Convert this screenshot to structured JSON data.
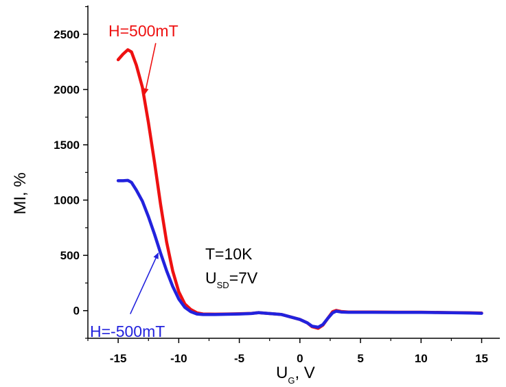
{
  "chart_data": {
    "type": "line",
    "xlabel": {
      "main": "U",
      "sub": "G",
      "rest": ", V"
    },
    "ylabel": "MI, %",
    "xlim": [
      -17.5,
      16.5
    ],
    "ylim": [
      -250,
      2760
    ],
    "x_ticks": [
      -15,
      -10,
      -5,
      0,
      5,
      10,
      15
    ],
    "y_ticks": [
      0,
      500,
      1000,
      1500,
      2000,
      2500
    ],
    "x_tick_labels": [
      "-15",
      "-10",
      "-5",
      "0",
      "5",
      "10",
      "15"
    ],
    "y_tick_labels": [
      "0",
      "500",
      "1000",
      "1500",
      "2000",
      "2500"
    ],
    "grid": false,
    "series": [
      {
        "name": "H=500mT",
        "color": "#ee1111",
        "points": [
          [
            -15,
            2270
          ],
          [
            -14.6,
            2320
          ],
          [
            -14.2,
            2360
          ],
          [
            -13.9,
            2340
          ],
          [
            -13.5,
            2220
          ],
          [
            -13.0,
            2020
          ],
          [
            -12.5,
            1700
          ],
          [
            -12.0,
            1340
          ],
          [
            -11.5,
            960
          ],
          [
            -11.0,
            620
          ],
          [
            -10.5,
            360
          ],
          [
            -10.0,
            170
          ],
          [
            -9.5,
            60
          ],
          [
            -9.0,
            10
          ],
          [
            -8.5,
            -20
          ],
          [
            -8.0,
            -30
          ],
          [
            -7.0,
            -32
          ],
          [
            -6.0,
            -30
          ],
          [
            -5.0,
            -28
          ],
          [
            -4.0,
            -25
          ],
          [
            -3.4,
            -18
          ],
          [
            -3.0,
            -22
          ],
          [
            -2.0,
            -30
          ],
          [
            -1.5,
            -35
          ],
          [
            -1.0,
            -50
          ],
          [
            0,
            -80
          ],
          [
            0.6,
            -110
          ],
          [
            1.0,
            -145
          ],
          [
            1.5,
            -160
          ],
          [
            1.9,
            -130
          ],
          [
            2.3,
            -70
          ],
          [
            2.7,
            -10
          ],
          [
            3.0,
            2
          ],
          [
            3.4,
            -8
          ],
          [
            4.0,
            -12
          ],
          [
            6.0,
            -12
          ],
          [
            8.0,
            -14
          ],
          [
            10.0,
            -14
          ],
          [
            12.0,
            -17
          ],
          [
            14.0,
            -20
          ],
          [
            15.0,
            -22
          ]
        ]
      },
      {
        "name": "H=-500mT",
        "color": "#2222dd",
        "points": [
          [
            -15,
            1175
          ],
          [
            -14.6,
            1175
          ],
          [
            -14.2,
            1178
          ],
          [
            -13.9,
            1160
          ],
          [
            -13.5,
            1090
          ],
          [
            -13.0,
            990
          ],
          [
            -12.5,
            850
          ],
          [
            -12.0,
            690
          ],
          [
            -11.5,
            520
          ],
          [
            -11.0,
            360
          ],
          [
            -10.5,
            220
          ],
          [
            -10.0,
            105
          ],
          [
            -9.5,
            30
          ],
          [
            -9.0,
            -10
          ],
          [
            -8.5,
            -30
          ],
          [
            -8.0,
            -35
          ],
          [
            -7.0,
            -35
          ],
          [
            -6.0,
            -33
          ],
          [
            -5.0,
            -30
          ],
          [
            -4.0,
            -26
          ],
          [
            -3.4,
            -18
          ],
          [
            -3.0,
            -22
          ],
          [
            -2.0,
            -30
          ],
          [
            -1.5,
            -35
          ],
          [
            -1.0,
            -50
          ],
          [
            0,
            -80
          ],
          [
            0.6,
            -110
          ],
          [
            1.0,
            -140
          ],
          [
            1.5,
            -150
          ],
          [
            1.9,
            -125
          ],
          [
            2.3,
            -70
          ],
          [
            2.7,
            -20
          ],
          [
            3.0,
            -5
          ],
          [
            3.4,
            -12
          ],
          [
            4.0,
            -15
          ],
          [
            6.0,
            -15
          ],
          [
            8.0,
            -16
          ],
          [
            10.0,
            -16
          ],
          [
            12.0,
            -18
          ],
          [
            14.0,
            -21
          ],
          [
            15.0,
            -24
          ]
        ]
      }
    ],
    "annotations": [
      {
        "text": "H=500mT",
        "color": "#ee1111",
        "arrow_from": [
          -11.9,
          2420
        ],
        "arrow_to": [
          -12.8,
          1960
        ]
      },
      {
        "text": "H=-500mT",
        "color": "#2222dd",
        "arrow_from": [
          -14.0,
          -30
        ],
        "arrow_to": [
          -11.7,
          520
        ]
      },
      {
        "text": "T=10K",
        "color": "#000000"
      },
      {
        "main": "U",
        "sub": "SD",
        "rest": "=7V",
        "color": "#000000"
      }
    ]
  }
}
